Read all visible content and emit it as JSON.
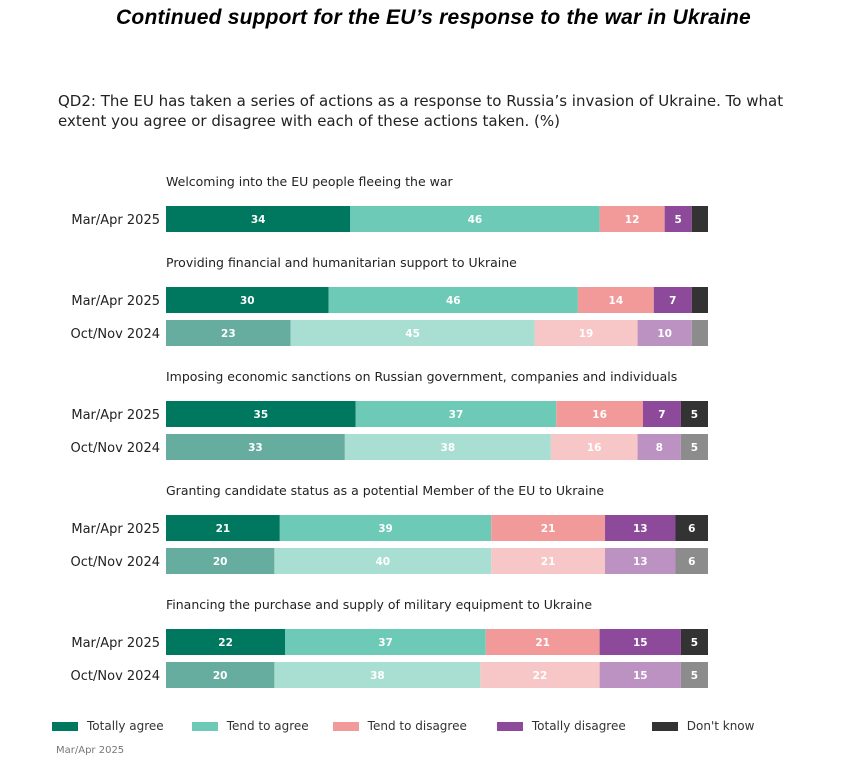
{
  "title": "Continued support for the EU’s response to the war in Ukraine",
  "question": "QD2: The EU has taken a series of actions as a response to Russia’s invasion of Ukraine. To what extent you agree or disagree with each of these actions taken. (%)",
  "footnote": "Mar/Apr 2025",
  "colors": {
    "Totally agree": "#00775f",
    "Tend to agree": "#6dcab6",
    "Tend to disagree": "#f29a9a",
    "Totally disagree": "#8e4a9a",
    "Don't know": "#333333",
    "Totally agree_faded": "#66ad9f",
    "Tend to agree_faded": "#a9ded3",
    "Tend to disagree_faded": "#f7c6c6",
    "Totally disagree_faded": "#bb92c2",
    "Don't know_faded": "#8c8c8c"
  },
  "chart_data": {
    "type": "bar",
    "orientation": "horizontal-stacked-100",
    "series_names": [
      "Totally agree",
      "Tend to agree",
      "Tend to disagree",
      "Totally disagree",
      "Don't know"
    ],
    "legend_position": "bottom",
    "groups": [
      {
        "label": "Welcoming into the EU people fleeing the war",
        "rows": [
          {
            "period": "Mar/Apr 2025",
            "faded": false,
            "values": [
              34,
              46,
              12,
              5,
              3
            ],
            "labels": [
              "34",
              "46",
              "12",
              "5",
              ""
            ]
          }
        ]
      },
      {
        "label": "Providing financial and humanitarian support to Ukraine",
        "rows": [
          {
            "period": "Mar/Apr 2025",
            "faded": false,
            "values": [
              30,
              46,
              14,
              7,
              3
            ],
            "labels": [
              "30",
              "46",
              "14",
              "7",
              ""
            ]
          },
          {
            "period": "Oct/Nov 2024",
            "faded": true,
            "values": [
              23,
              45,
              19,
              10,
              3
            ],
            "labels": [
              "23",
              "45",
              "19",
              "10",
              ""
            ]
          }
        ]
      },
      {
        "label": "Imposing economic sanctions on Russian government, companies and individuals",
        "rows": [
          {
            "period": "Mar/Apr 2025",
            "faded": false,
            "values": [
              35,
              37,
              16,
              7,
              5
            ],
            "labels": [
              "35",
              "37",
              "16",
              "7",
              "5"
            ]
          },
          {
            "period": "Oct/Nov 2024",
            "faded": true,
            "values": [
              33,
              38,
              16,
              8,
              5
            ],
            "labels": [
              "33",
              "38",
              "16",
              "8",
              "5"
            ]
          }
        ]
      },
      {
        "label": "Granting candidate status as a potential Member of the EU to Ukraine",
        "rows": [
          {
            "period": "Mar/Apr 2025",
            "faded": false,
            "values": [
              21,
              39,
              21,
              13,
              6
            ],
            "labels": [
              "21",
              "39",
              "21",
              "13",
              "6"
            ]
          },
          {
            "period": "Oct/Nov 2024",
            "faded": true,
            "values": [
              20,
              40,
              21,
              13,
              6
            ],
            "labels": [
              "20",
              "40",
              "21",
              "13",
              "6"
            ]
          }
        ]
      },
      {
        "label": "Financing the purchase and supply of military equipment to Ukraine",
        "rows": [
          {
            "period": "Mar/Apr 2025",
            "faded": false,
            "values": [
              22,
              37,
              21,
              15,
              5
            ],
            "labels": [
              "22",
              "37",
              "21",
              "15",
              "5"
            ]
          },
          {
            "period": "Oct/Nov 2024",
            "faded": true,
            "values": [
              20,
              38,
              22,
              15,
              5
            ],
            "labels": [
              "20",
              "38",
              "22",
              "15",
              "5"
            ]
          }
        ]
      }
    ]
  }
}
